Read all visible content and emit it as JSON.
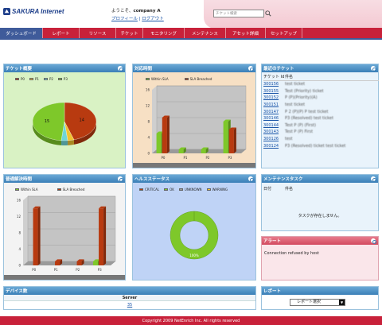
{
  "brand": {
    "name": "SAKURA Internet"
  },
  "header": {
    "welcome": "ようこそ、",
    "company": "company A",
    "profile_link": "プロフィール",
    "separator": " | ",
    "logout_link": "ログアウト",
    "search_placeholder": "チケット検索"
  },
  "nav": {
    "items": [
      {
        "label": "ダッシュボード",
        "active": true
      },
      {
        "label": "レポート"
      },
      {
        "label": "リソース"
      },
      {
        "label": "チケット"
      },
      {
        "label": "モニタリング"
      },
      {
        "label": "メンテナンス"
      },
      {
        "label": "アセット詳細"
      },
      {
        "label": "セットアップ"
      }
    ]
  },
  "panels": {
    "ticket_overview": {
      "title": "チケット概要",
      "chart_data": {
        "type": "pie",
        "categories": [
          "P0",
          "P1",
          "P2",
          "P3"
        ],
        "values": [
          14,
          1,
          1,
          15
        ],
        "labels": [
          "14",
          "",
          "",
          "15"
        ],
        "colors": [
          "#b83a10",
          "#f2c230",
          "#6fd6d8",
          "#7ec82a"
        ]
      }
    },
    "response_time": {
      "title": "対応時間",
      "chart_data": {
        "type": "bar",
        "categories": [
          "P0",
          "P1",
          "P2",
          "P3"
        ],
        "series": [
          {
            "name": "Within SLA",
            "values": [
              5,
              1,
              1,
              8
            ]
          },
          {
            "name": "SLA Breached",
            "values": [
              9,
              0,
              0,
              6
            ]
          }
        ],
        "ylim": [
          0,
          16
        ],
        "yticks": [
          "0",
          "4",
          "8",
          "12",
          "16"
        ],
        "colors": [
          "#7ec82a",
          "#b83a10"
        ]
      }
    },
    "recent_tickets": {
      "title": "最近のチケット",
      "columns": [
        "チケット Id",
        "件名"
      ],
      "rows": [
        {
          "id": "300156",
          "subject": "test ticket"
        },
        {
          "id": "300155",
          "subject": "Test (Priority) ticket"
        },
        {
          "id": "300152",
          "subject": "P (P)(Priority)(A)"
        },
        {
          "id": "300151",
          "subject": "test ticket"
        },
        {
          "id": "300147",
          "subject": "P 2 (P)(P) P test ticket"
        },
        {
          "id": "300146",
          "subject": "P3 (Resolved) test ticket"
        },
        {
          "id": "300144",
          "subject": "Test P (P) (First)"
        },
        {
          "id": "300143",
          "subject": "Test P (P) First"
        },
        {
          "id": "300126",
          "subject": "test"
        },
        {
          "id": "300124",
          "subject": "P3 (Resolved) ticket test ticket"
        }
      ]
    },
    "resolution_time": {
      "title": "普通解決時間",
      "chart_data": {
        "type": "bar",
        "categories": [
          "P0",
          "P1",
          "P2",
          "P3"
        ],
        "series": [
          {
            "name": "Within SLA",
            "values": [
              0,
              0,
              0,
              1
            ]
          },
          {
            "name": "SLA Breached",
            "values": [
              14,
              1,
              1,
              14
            ]
          }
        ],
        "ylim": [
          0,
          16
        ],
        "yticks": [
          "0",
          "4",
          "8",
          "12",
          "16"
        ],
        "colors": [
          "#7ec82a",
          "#b83a10"
        ]
      }
    },
    "health_status": {
      "title": "ヘルスステータス",
      "chart_data": {
        "type": "pie",
        "categories": [
          "CRITICAL",
          "OK",
          "UNKNOWN",
          "WARNING"
        ],
        "values": [
          0,
          100,
          0,
          0
        ],
        "center_label": "100%",
        "colors": [
          "#b83a10",
          "#7ec82a",
          "#9a9a9a",
          "#f2c230"
        ]
      }
    },
    "maintenance": {
      "title": "メンテナンスタスク",
      "columns": [
        "日付",
        "件名"
      ],
      "empty": "タスクが存在しません。"
    },
    "alert": {
      "title": "アラート",
      "message": "Connection refused by host"
    },
    "devices": {
      "title": "デバイス数",
      "column": "Server",
      "value": "35"
    },
    "report": {
      "title": "レポート",
      "select_value": "レポート選択",
      "arrow": "▼"
    }
  },
  "footer": {
    "text": "Copyright 2009 NetEnrich Inc. All rights reserved"
  },
  "colors": {
    "brand_red": "#c8213a",
    "nav_active": "#3f5b9a",
    "panel_header": "#3b7fb7"
  }
}
